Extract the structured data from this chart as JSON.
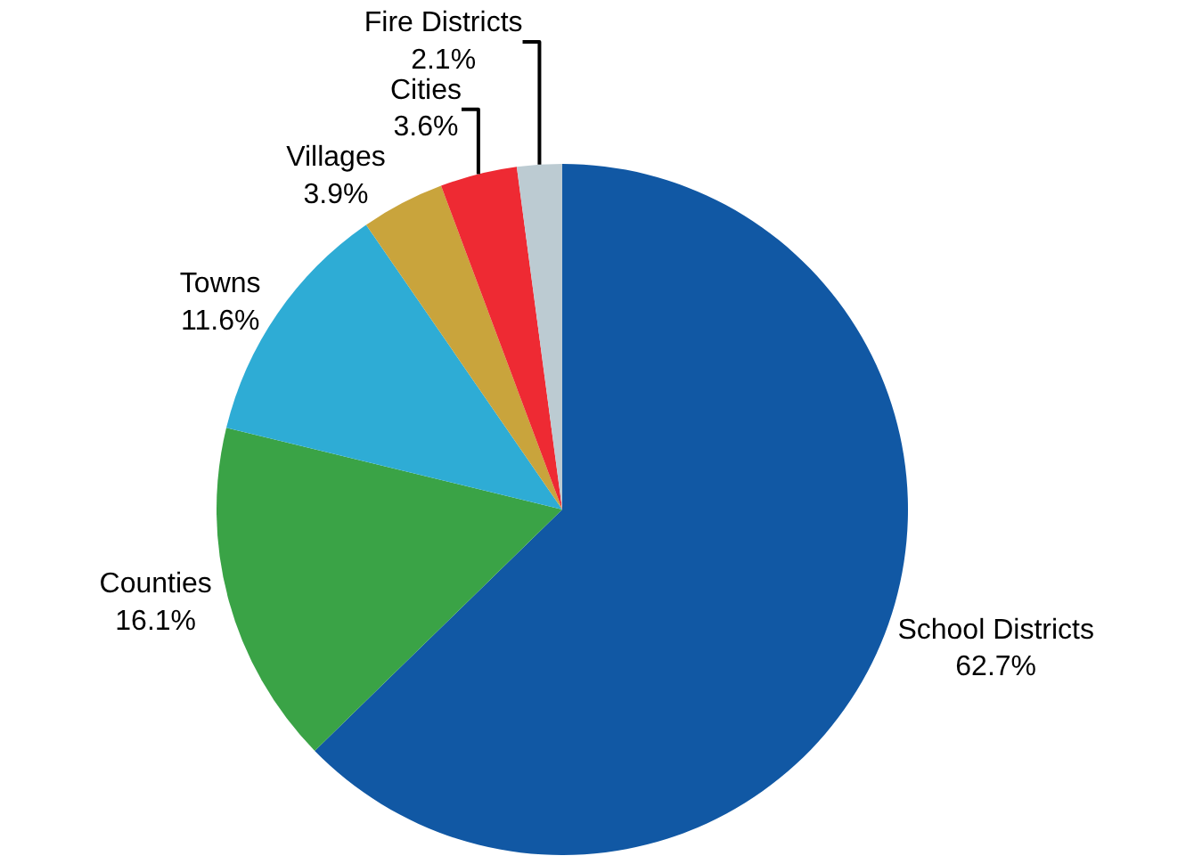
{
  "chart_data": {
    "type": "pie",
    "categories": [
      "School Districts",
      "Counties",
      "Towns",
      "Villages",
      "Cities",
      "Fire Districts"
    ],
    "values": [
      62.7,
      16.1,
      11.6,
      3.9,
      3.6,
      2.1
    ],
    "value_labels": [
      "62.7%",
      "16.1%",
      "11.6%",
      "3.9%",
      "3.6%",
      "2.1%"
    ],
    "colors": [
      "#1158a4",
      "#3aa346",
      "#2eacd5",
      "#c9a43c",
      "#ee2a33",
      "#bccbd2"
    ],
    "legend": false
  }
}
